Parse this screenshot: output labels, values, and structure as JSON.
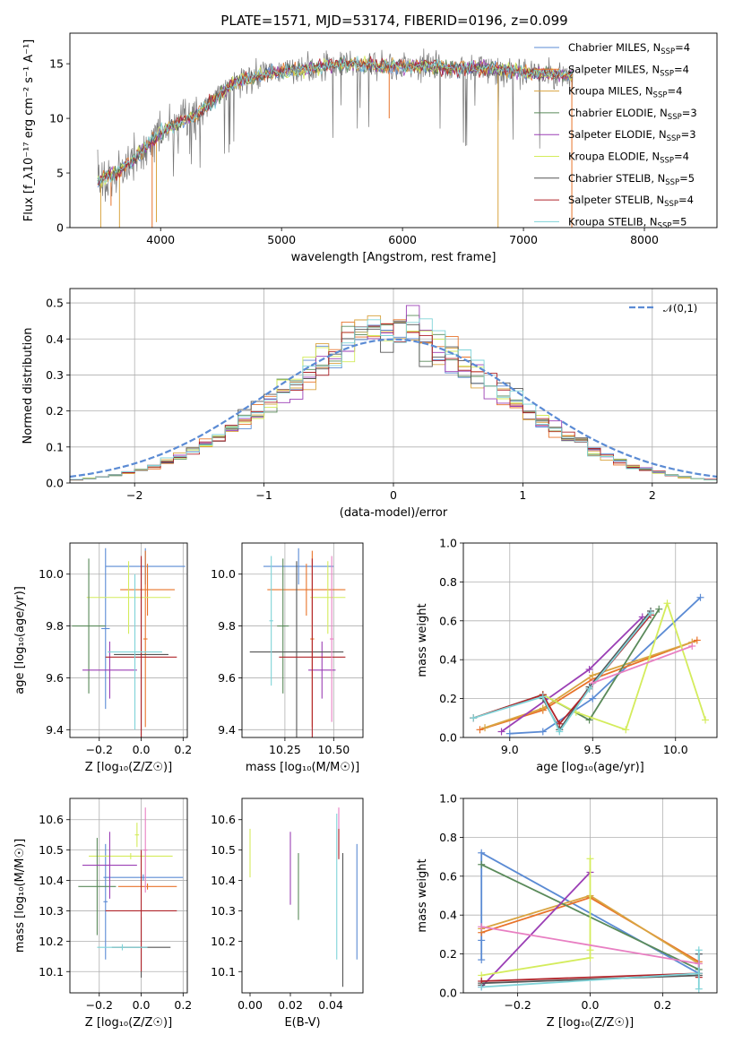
{
  "figure": {
    "title": "PLATE=1571, MJD=53174, FIBERID=0196, z=0.099"
  },
  "colors": {
    "Chabrier MILES": "#5b8bd4",
    "Salpeter MILES": "#e8732a",
    "Kroupa MILES": "#d9a441",
    "Chabrier ELODIE": "#5a8a5a",
    "Salpeter ELODIE": "#9b3fb5",
    "Kroupa ELODIE": "#d4ec5c",
    "Chabrier STELIB": "#555555",
    "Salpeter STELIB": "#b0242a",
    "Kroupa STELIB": "#7fd3d8",
    "pink": "#e87fc2",
    "data": "#777777",
    "normal": "#5b8bd4"
  },
  "chart_data": [
    {
      "id": "spectrum",
      "type": "line",
      "xlabel": "wavelength [Angstrom, rest frame]",
      "ylabel": "Flux [f_λ10⁻¹⁷ erg cm⁻² s⁻¹ A⁻¹]",
      "xlim": [
        3250,
        8600
      ],
      "ylim": [
        0,
        17.8
      ],
      "xticks": [
        4000,
        5000,
        6000,
        7000,
        8000
      ],
      "yticks": [
        0,
        5,
        10,
        15
      ],
      "continuum": [
        [
          3480,
          4.3
        ],
        [
          3650,
          5.0
        ],
        [
          3850,
          7.0
        ],
        [
          4000,
          8.8
        ],
        [
          4300,
          10.3
        ],
        [
          4600,
          13.2
        ],
        [
          4900,
          14.2
        ],
        [
          5200,
          14.5
        ],
        [
          5500,
          15.0
        ],
        [
          5800,
          14.8
        ],
        [
          6100,
          14.8
        ],
        [
          6400,
          14.6
        ],
        [
          6700,
          14.6
        ],
        [
          7000,
          14.2
        ],
        [
          7300,
          14.0
        ],
        [
          7400,
          14.0
        ]
      ],
      "legend": [
        {
          "name": "Chabrier MILES, N",
          "sub": "SSP",
          "val": "=4"
        },
        {
          "name": "Salpeter MILES, N",
          "sub": "SSP",
          "val": "=4"
        },
        {
          "name": "Kroupa MILES, N",
          "sub": "SSP",
          "val": "=4"
        },
        {
          "name": "Chabrier ELODIE, N",
          "sub": "SSP",
          "val": "=3"
        },
        {
          "name": "Salpeter ELODIE, N",
          "sub": "SSP",
          "val": "=3"
        },
        {
          "name": "Kroupa ELODIE, N",
          "sub": "SSP",
          "val": "=4"
        },
        {
          "name": "Chabrier STELIB, N",
          "sub": "SSP",
          "val": "=5"
        },
        {
          "name": "Salpeter STELIB, N",
          "sub": "SSP",
          "val": "=4"
        },
        {
          "name": "Kroupa STELIB, N",
          "sub": "SSP",
          "val": "=5"
        }
      ]
    },
    {
      "id": "residuals",
      "type": "histogram",
      "xlabel": "(data-model)/error",
      "ylabel": "Normed distribution",
      "xlim": [
        -2.5,
        2.5
      ],
      "ylim": [
        0,
        0.54
      ],
      "xticks": [
        -2,
        -1,
        0,
        1,
        2
      ],
      "yticks": [
        0.0,
        0.1,
        0.2,
        0.3,
        0.4,
        0.5
      ],
      "grid": true,
      "legend_label": "𝒩(0,1)",
      "legend_position": "top-right"
    },
    {
      "id": "age-vs-Z",
      "type": "errorbar",
      "xlabel": "Z [log₁₀(Z/Z☉)]",
      "ylabel": "age  [log₁₀(age/yr)]",
      "xlim": [
        -0.34,
        0.22
      ],
      "ylim": [
        9.37,
        10.12
      ],
      "xticks": [
        -0.2,
        0.0,
        0.2
      ],
      "yticks": [
        9.4,
        9.6,
        9.8,
        10.0
      ],
      "grid": true,
      "points": [
        {
          "series": "Chabrier MILES",
          "x": 0.02,
          "xerr": 0.19,
          "y": 10.03,
          "yerr": 0.07
        },
        {
          "series": "Chabrier MILES",
          "x": -0.17,
          "xerr": 0.02,
          "y": 9.79,
          "yerr": 0.31
        },
        {
          "series": "Salpeter MILES",
          "x": 0.03,
          "xerr": 0.13,
          "y": 9.94,
          "yerr": 0.1
        },
        {
          "series": "Salpeter MILES",
          "x": 0.02,
          "xerr": 0.01,
          "y": 9.75,
          "yerr": 0.34
        },
        {
          "series": "Kroupa ELODIE",
          "x": -0.06,
          "xerr": 0.2,
          "y": 9.91,
          "yerr": 0.14
        },
        {
          "series": "Chabrier ELODIE",
          "x": -0.25,
          "xerr": 0.08,
          "y": 9.8,
          "yerr": 0.26
        },
        {
          "series": "Salpeter ELODIE",
          "x": -0.15,
          "xerr": 0.13,
          "y": 9.63,
          "yerr": 0.11
        },
        {
          "series": "Chabrier STELIB",
          "x": 0.0,
          "xerr": 0.13,
          "y": 9.69,
          "yerr": 0.37
        },
        {
          "series": "Salpeter STELIB",
          "x": 0.0,
          "xerr": 0.17,
          "y": 9.68,
          "yerr": 0.39
        },
        {
          "series": "Kroupa STELIB",
          "x": -0.03,
          "xerr": 0.13,
          "y": 9.7,
          "yerr": 0.3
        }
      ]
    },
    {
      "id": "age-vs-mass",
      "type": "errorbar",
      "xlabel": "mass [log₁₀(M/M☉)]",
      "ylabel": "",
      "xlim": [
        10.03,
        10.65
      ],
      "ylim": [
        9.37,
        10.12
      ],
      "xticks": [
        10.25,
        10.5
      ],
      "yticks": [
        9.4,
        9.6,
        9.8,
        10.0
      ],
      "grid": true,
      "points": [
        {
          "series": "Chabrier MILES",
          "x": 10.32,
          "xerr": 0.18,
          "y": 10.03,
          "yerr": 0.07
        },
        {
          "series": "Salpeter MILES",
          "x": 10.36,
          "xerr": 0.2,
          "y": 9.94,
          "yerr": 0.1
        },
        {
          "series": "Salpeter MILES",
          "x": 10.39,
          "xerr": 0.01,
          "y": 9.75,
          "yerr": 0.34
        },
        {
          "series": "Kroupa ELODIE",
          "x": 10.47,
          "xerr": 0.09,
          "y": 9.91,
          "yerr": 0.14
        },
        {
          "series": "Chabrier ELODIE",
          "x": 10.24,
          "xerr": 0.03,
          "y": 9.8,
          "yerr": 0.26
        },
        {
          "series": "Salpeter ELODIE",
          "x": 10.44,
          "xerr": 0.07,
          "y": 9.63,
          "yerr": 0.11
        },
        {
          "series": "Chabrier STELIB",
          "x": 10.31,
          "xerr": 0.24,
          "y": 9.7,
          "yerr": 0.35
        },
        {
          "series": "Salpeter STELIB",
          "x": 10.39,
          "xerr": 0.17,
          "y": 9.68,
          "yerr": 0.38
        },
        {
          "series": "Kroupa STELIB",
          "x": 10.18,
          "xerr": 0.01,
          "y": 9.82,
          "yerr": 0.25
        },
        {
          "series": "pink",
          "x": 10.49,
          "xerr": 0.01,
          "y": 9.75,
          "yerr": 0.32
        }
      ]
    },
    {
      "id": "weight-vs-age",
      "type": "line",
      "xlabel": "age  [log₁₀(age/yr)]",
      "ylabel": "mass weight",
      "xlim": [
        8.72,
        10.25
      ],
      "ylim": [
        0,
        1.0
      ],
      "xticks": [
        9.0,
        9.5,
        10.0
      ],
      "yticks": [
        0.0,
        0.2,
        0.4,
        0.6,
        0.8,
        1.0
      ],
      "grid": true,
      "series": [
        {
          "name": "Chabrier MILES",
          "x": [
            9.0,
            9.2,
            9.5,
            10.15
          ],
          "y": [
            0.02,
            0.03,
            0.2,
            0.72
          ]
        },
        {
          "name": "Salpeter MILES",
          "x": [
            8.82,
            9.2,
            9.5,
            10.13
          ],
          "y": [
            0.04,
            0.14,
            0.3,
            0.5
          ]
        },
        {
          "name": "Kroupa MILES",
          "x": [
            8.85,
            9.2,
            9.5,
            10.1
          ],
          "y": [
            0.05,
            0.15,
            0.32,
            0.49
          ]
        },
        {
          "name": "Chabrier ELODIE",
          "x": [
            8.78,
            9.2,
            9.48,
            9.9
          ],
          "y": [
            0.1,
            0.22,
            0.09,
            0.66
          ]
        },
        {
          "name": "Salpeter ELODIE",
          "x": [
            8.95,
            9.48,
            9.8
          ],
          "y": [
            0.03,
            0.35,
            0.62
          ]
        },
        {
          "name": "Kroupa ELODIE",
          "x": [
            9.2,
            9.4,
            9.7,
            9.95,
            10.18
          ],
          "y": [
            0.22,
            0.13,
            0.04,
            0.69,
            0.09
          ]
        },
        {
          "name": "Chabrier STELIB",
          "x": [
            9.2,
            9.3,
            9.48,
            9.85
          ],
          "y": [
            0.2,
            0.04,
            0.26,
            0.65
          ]
        },
        {
          "name": "Salpeter STELIB",
          "x": [
            8.78,
            9.2,
            9.3,
            9.48,
            9.85
          ],
          "y": [
            0.1,
            0.22,
            0.07,
            0.25,
            0.63
          ]
        },
        {
          "name": "Kroupa STELIB",
          "x": [
            8.78,
            9.2,
            9.3,
            9.48,
            9.85
          ],
          "y": [
            0.1,
            0.21,
            0.03,
            0.25,
            0.64
          ]
        },
        {
          "name": "pink",
          "x": [
            9.5,
            10.1
          ],
          "y": [
            0.28,
            0.47
          ]
        }
      ]
    },
    {
      "id": "mass-vs-Z",
      "type": "errorbar",
      "xlabel": "Z [log₁₀(Z/Z☉)]",
      "ylabel": "mass [log₁₀(M/M☉)]",
      "xlim": [
        -0.34,
        0.22
      ],
      "ylim": [
        10.03,
        10.67
      ],
      "xticks": [
        -0.2,
        0.0,
        0.2
      ],
      "yticks": [
        10.1,
        10.2,
        10.3,
        10.4,
        10.5,
        10.6
      ],
      "grid": true,
      "points": [
        {
          "series": "Chabrier MILES",
          "x": 0.01,
          "xerr": 0.19,
          "y": 10.41,
          "yerr": 0.01
        },
        {
          "series": "Chabrier MILES",
          "x": -0.17,
          "xerr": 0.01,
          "y": 10.33,
          "yerr": 0.19
        },
        {
          "series": "Salpeter MILES",
          "x": 0.03,
          "xerr": 0.14,
          "y": 10.38,
          "yerr": 0.01
        },
        {
          "series": "Kroupa ELODIE",
          "x": -0.05,
          "xerr": 0.2,
          "y": 10.48,
          "yerr": 0.01
        },
        {
          "series": "Kroupa ELODIE",
          "x": -0.02,
          "xerr": 0.01,
          "y": 10.55,
          "yerr": 0.04
        },
        {
          "series": "Chabrier ELODIE",
          "x": -0.21,
          "xerr": 0.09,
          "y": 10.38,
          "yerr": 0.16
        },
        {
          "series": "Salpeter ELODIE",
          "x": -0.15,
          "xerr": 0.13,
          "y": 10.45,
          "yerr": 0.11
        },
        {
          "series": "Chabrier STELIB",
          "x": 0.0,
          "xerr": 0.14,
          "y": 10.18,
          "yerr": 0.1
        },
        {
          "series": "Salpeter STELIB",
          "x": 0.0,
          "xerr": 0.17,
          "y": 10.3,
          "yerr": 0.2
        },
        {
          "series": "Kroupa STELIB",
          "x": -0.09,
          "xerr": 0.12,
          "y": 10.18,
          "yerr": 0.01
        },
        {
          "series": "pink",
          "x": 0.02,
          "xerr": 0.01,
          "y": 10.5,
          "yerr": 0.14
        }
      ]
    },
    {
      "id": "mass-vs-EBV",
      "type": "errorbar",
      "xlabel": "E(B-V)",
      "ylabel": "",
      "xlim": [
        -0.004,
        0.056
      ],
      "ylim": [
        10.03,
        10.67
      ],
      "xticks": [
        0.0,
        0.02,
        0.04
      ],
      "yticks": [
        10.1,
        10.2,
        10.3,
        10.4,
        10.5,
        10.6
      ],
      "grid": false,
      "points": [
        {
          "series": "Kroupa ELODIE",
          "x": 0.0,
          "xerr": 0,
          "y": 10.49,
          "yerr": 0.08
        },
        {
          "series": "Salpeter ELODIE",
          "x": 0.02,
          "xerr": 0,
          "y": 10.44,
          "yerr": 0.12
        },
        {
          "series": "Chabrier ELODIE",
          "x": 0.024,
          "xerr": 0,
          "y": 10.38,
          "yerr": 0.11
        },
        {
          "series": "Kroupa STELIB",
          "x": 0.043,
          "xerr": 0,
          "y": 10.38,
          "yerr": 0.24
        },
        {
          "series": "pink",
          "x": 0.044,
          "xerr": 0,
          "y": 10.56,
          "yerr": 0.08
        },
        {
          "series": "Salpeter STELIB",
          "x": 0.044,
          "xerr": 0,
          "y": 10.52,
          "yerr": 0.05
        },
        {
          "series": "Chabrier STELIB",
          "x": 0.046,
          "xerr": 0,
          "y": 10.27,
          "yerr": 0.22
        },
        {
          "series": "Chabrier MILES",
          "x": 0.053,
          "xerr": 0,
          "y": 10.33,
          "yerr": 0.19
        }
      ]
    },
    {
      "id": "weight-vs-Z",
      "type": "line",
      "xlabel": "Z [log₁₀(Z/Z☉)]",
      "ylabel": "mass weight",
      "xlim": [
        -0.35,
        0.35
      ],
      "ylim": [
        0,
        1.0
      ],
      "xticks": [
        -0.2,
        0.0,
        0.2
      ],
      "yticks": [
        0.0,
        0.2,
        0.4,
        0.6,
        0.8,
        1.0
      ],
      "grid": true,
      "series": [
        {
          "name": "Chabrier MILES",
          "x": [
            -0.3,
            -0.3,
            -0.3,
            0.3,
            0.3
          ],
          "y": [
            0.17,
            0.27,
            0.72,
            0.1,
            0.2
          ]
        },
        {
          "name": "Salpeter MILES",
          "x": [
            -0.3,
            0.0,
            0.3
          ],
          "y": [
            0.31,
            0.49,
            0.16
          ]
        },
        {
          "name": "Kroupa MILES",
          "x": [
            -0.3,
            0.0,
            0.3
          ],
          "y": [
            0.33,
            0.5,
            0.15
          ]
        },
        {
          "name": "Chabrier ELODIE",
          "x": [
            -0.3,
            0.3,
            0.3
          ],
          "y": [
            0.66,
            0.12,
            0.09
          ]
        },
        {
          "name": "Salpeter ELODIE",
          "x": [
            -0.3,
            0.0
          ],
          "y": [
            0.03,
            0.62
          ]
        },
        {
          "name": "Kroupa ELODIE",
          "x": [
            -0.3,
            0.0,
            0.0,
            0.0
          ],
          "y": [
            0.09,
            0.18,
            0.69,
            0.22
          ]
        },
        {
          "name": "Chabrier STELIB",
          "x": [
            -0.3,
            -0.3,
            0.3,
            0.3
          ],
          "y": [
            0.04,
            0.05,
            0.09,
            0.2
          ]
        },
        {
          "name": "Salpeter STELIB",
          "x": [
            -0.3,
            0.3,
            0.3
          ],
          "y": [
            0.06,
            0.1,
            0.08
          ]
        },
        {
          "name": "Kroupa STELIB",
          "x": [
            -0.3,
            0.3,
            0.3,
            0.3
          ],
          "y": [
            0.03,
            0.1,
            0.02,
            0.22
          ]
        },
        {
          "name": "pink",
          "x": [
            -0.3,
            0.3
          ],
          "y": [
            0.34,
            0.15
          ]
        }
      ]
    }
  ]
}
